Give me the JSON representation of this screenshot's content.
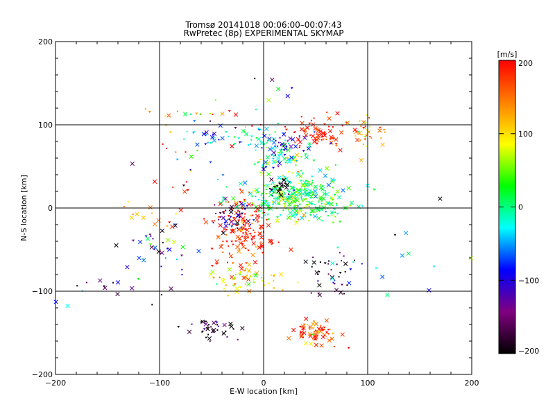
{
  "chart_data": {
    "type": "scatter",
    "title": "Tromsø 20141018 00:06:00–00:07:43",
    "subtitle": "RwPretec (8p) EXPERIMENTAL SKYMAP",
    "xlabel": "E-W location [km]",
    "ylabel": "N-S location [km]",
    "xlim": [
      -200,
      200
    ],
    "ylim": [
      -200,
      200
    ],
    "xticks": [
      "−200",
      "−100",
      "0",
      "100",
      "200"
    ],
    "yticks": [
      "−200",
      "−100",
      "0",
      "100",
      "200"
    ],
    "grid": true,
    "colorbar": {
      "label": "[m/s]",
      "range": [
        -200,
        200
      ],
      "ticks": [
        "200",
        "100",
        "0",
        "−100",
        "−200"
      ],
      "colors": [
        "#ff0000",
        "#ff8000",
        "#ffff00",
        "#00ff00",
        "#00ffff",
        "#0000ff",
        "#800080",
        "#000000"
      ]
    },
    "clusters": [
      {
        "cx": 55,
        "cy": 90,
        "sx": 16,
        "sy": 8,
        "n": 70,
        "v": 190,
        "vs": 25
      },
      {
        "cx": 100,
        "cy": 90,
        "sx": 10,
        "sy": 10,
        "n": 35,
        "v": 130,
        "vs": 60
      },
      {
        "cx": 15,
        "cy": 75,
        "sx": 12,
        "sy": 8,
        "n": 45,
        "v": -80,
        "vs": 40
      },
      {
        "cx": -10,
        "cy": 85,
        "sx": 14,
        "sy": 6,
        "n": 30,
        "v": -10,
        "vs": 40
      },
      {
        "cx": -55,
        "cy": 85,
        "sx": 12,
        "sy": 6,
        "n": 20,
        "v": -60,
        "vs": 40
      },
      {
        "cx": -60,
        "cy": 115,
        "sx": 20,
        "sy": 4,
        "n": 15,
        "v": 120,
        "vs": 100
      },
      {
        "cx": 25,
        "cy": 20,
        "sx": 22,
        "sy": 12,
        "n": 160,
        "v": 10,
        "vs": 40
      },
      {
        "cx": 35,
        "cy": 5,
        "sx": 28,
        "sy": 12,
        "n": 160,
        "v": 15,
        "vs": 40
      },
      {
        "cx": 20,
        "cy": 60,
        "sx": 18,
        "sy": 10,
        "n": 50,
        "v": 30,
        "vs": 80
      },
      {
        "cx": 15,
        "cy": 25,
        "sx": 6,
        "sy": 6,
        "n": 25,
        "v": -190,
        "vs": 15
      },
      {
        "cx": -20,
        "cy": -30,
        "sx": 14,
        "sy": 20,
        "n": 150,
        "v": 190,
        "vs": 30
      },
      {
        "cx": -30,
        "cy": -10,
        "sx": 10,
        "sy": 10,
        "n": 40,
        "v": -150,
        "vs": 60
      },
      {
        "cx": -20,
        "cy": -85,
        "sx": 16,
        "sy": 8,
        "n": 60,
        "v": 100,
        "vs": 40
      },
      {
        "cx": -45,
        "cy": -145,
        "sx": 12,
        "sy": 8,
        "n": 40,
        "v": -190,
        "vs": 40
      },
      {
        "cx": 50,
        "cy": -150,
        "sx": 10,
        "sy": 8,
        "n": 70,
        "v": 180,
        "vs": 50
      },
      {
        "cx": 65,
        "cy": -80,
        "sx": 12,
        "sy": 15,
        "n": 40,
        "v": -170,
        "vs": 60
      },
      {
        "cx": -100,
        "cy": -50,
        "sx": 18,
        "sy": 15,
        "n": 35,
        "v": -80,
        "vs": 80
      },
      {
        "cx": -100,
        "cy": -10,
        "sx": 15,
        "sy": 8,
        "n": 15,
        "v": 150,
        "vs": 50
      },
      {
        "cx": -80,
        "cy": 60,
        "sx": 30,
        "sy": 25,
        "n": 25,
        "v": 100,
        "vs": 120
      },
      {
        "cx": 0,
        "cy": 130,
        "sx": 20,
        "sy": 20,
        "n": 12,
        "v": 50,
        "vs": 150
      },
      {
        "cx": -150,
        "cy": -100,
        "sx": 25,
        "sy": 15,
        "n": 15,
        "v": -150,
        "vs": 60
      },
      {
        "cx": 100,
        "cy": -50,
        "sx": 40,
        "sy": 40,
        "n": 15,
        "v": 0,
        "vs": 150
      }
    ]
  }
}
